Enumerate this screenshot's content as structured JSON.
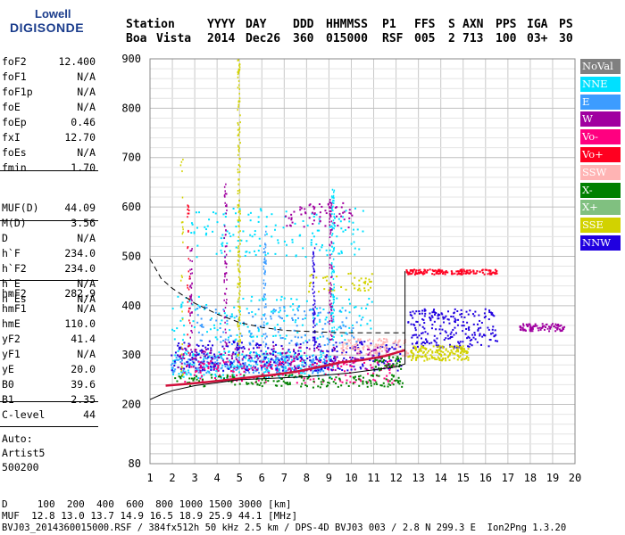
{
  "logo": {
    "line1": "Lowell",
    "line2": "DIGISONDE"
  },
  "header": {
    "row1": [
      "Station",
      "YYYY",
      "DAY",
      "DDD",
      "HHMMSS",
      "P1",
      "FFS",
      "S",
      "AXN",
      "PPS",
      "IGA",
      "PS"
    ],
    "row2": [
      "Boa",
      "Vista",
      "2014",
      "Dec26",
      "360",
      "015000",
      "RSF",
      "005",
      "2",
      "713",
      "100",
      "03+",
      "30"
    ]
  },
  "params": {
    "group1": [
      {
        "name": "foF2",
        "value": "12.400"
      },
      {
        "name": "foF1",
        "value": "N/A"
      },
      {
        "name": "foF1p",
        "value": "N/A"
      },
      {
        "name": "foE",
        "value": "N/A"
      },
      {
        "name": "foEp",
        "value": "0.46"
      },
      {
        "name": "fxI",
        "value": "12.70"
      },
      {
        "name": "foEs",
        "value": "N/A"
      },
      {
        "name": "fmin",
        "value": "1.70"
      }
    ],
    "group2": [
      {
        "name": "MUF(D)",
        "value": "44.09"
      },
      {
        "name": "M(D)",
        "value": "3.56"
      },
      {
        "name": "D",
        "value": "N/A"
      }
    ],
    "group3": [
      {
        "name": "h`F",
        "value": "234.0"
      },
      {
        "name": "h`F2",
        "value": "234.0"
      },
      {
        "name": "h`E",
        "value": "N/A"
      },
      {
        "name": "h`Es",
        "value": "N/A"
      }
    ],
    "group4": [
      {
        "name": "hmF2",
        "value": "282.9"
      },
      {
        "name": "hmF1",
        "value": "N/A"
      },
      {
        "name": "hmE",
        "value": "110.0"
      },
      {
        "name": "yF2",
        "value": "41.4"
      },
      {
        "name": "yF1",
        "value": "N/A"
      },
      {
        "name": "yE",
        "value": "20.0"
      },
      {
        "name": "B0",
        "value": "39.6"
      },
      {
        "name": "B1",
        "value": "2.35"
      }
    ],
    "group5": [
      {
        "name": "C-level",
        "value": "44"
      }
    ],
    "auto": [
      "Auto:",
      "Artist5",
      "500200"
    ]
  },
  "legend": [
    {
      "label": "NoVal",
      "color": "#808080"
    },
    {
      "label": "NNE",
      "color": "#00e0ff"
    },
    {
      "label": "E",
      "color": "#3c9cff"
    },
    {
      "label": "W",
      "color": "#a000a0"
    },
    {
      "label": "Vo-",
      "color": "#ff0080"
    },
    {
      "label": "Vo+",
      "color": "#ff0020"
    },
    {
      "label": "SSW",
      "color": "#ffb4b4"
    },
    {
      "label": "X-",
      "color": "#008000"
    },
    {
      "label": "X+",
      "color": "#80c080"
    },
    {
      "label": "SSE",
      "color": "#d2d200"
    },
    {
      "label": "NNW",
      "color": "#2000e0"
    }
  ],
  "footer": {
    "line1": "D     100  200  400  600  800 1000 1500 3000 [km]",
    "line2": "MUF  12.8 13.0 13.7 14.9 16.5 18.9 25.9 44.1 [MHz]",
    "line3": "BVJ03_2014360015000.RSF / 384fx512h 50 kHz 2.5 km / DPS-4D BVJ03 003 / 2.8 N 299.3 E  Ion2Png 1.3.20"
  },
  "chart_data": {
    "type": "scatter",
    "xlim": [
      1,
      20
    ],
    "ylim": [
      80,
      900
    ],
    "xticks": [
      1,
      2,
      3,
      4,
      5,
      6,
      7,
      8,
      9,
      10,
      11,
      12,
      13,
      14,
      15,
      16,
      17,
      18,
      19,
      20
    ],
    "yticks": [
      80,
      200,
      300,
      400,
      500,
      600,
      700,
      800,
      900
    ],
    "grid": true,
    "legend_position": "right",
    "profile_solid": [
      [
        1.0,
        210
      ],
      [
        1.5,
        220
      ],
      [
        2.0,
        228
      ],
      [
        3.0,
        238
      ],
      [
        4.0,
        244
      ],
      [
        5.0,
        250
      ],
      [
        6.0,
        252
      ],
      [
        7.0,
        254
      ],
      [
        8.0,
        256
      ],
      [
        9.0,
        260
      ],
      [
        10.0,
        264
      ],
      [
        11.0,
        270
      ],
      [
        12.0,
        276
      ],
      [
        12.4,
        282
      ],
      [
        12.4,
        470
      ]
    ],
    "profile_dashed": [
      [
        1.0,
        495
      ],
      [
        1.5,
        455
      ],
      [
        2.0,
        435
      ],
      [
        3.0,
        405
      ],
      [
        4.0,
        383
      ],
      [
        5.0,
        366
      ],
      [
        6.0,
        356
      ],
      [
        7.0,
        350
      ],
      [
        8.0,
        348
      ],
      [
        9.0,
        346
      ],
      [
        10.0,
        345
      ],
      [
        12.4,
        345
      ]
    ],
    "trace": [
      [
        1.7,
        238
      ],
      [
        2.5,
        241
      ],
      [
        3.5,
        245
      ],
      [
        4.5,
        250
      ],
      [
        5.5,
        255
      ],
      [
        6.5,
        260
      ],
      [
        7.5,
        266
      ],
      [
        8.5,
        275
      ],
      [
        9.5,
        285
      ],
      [
        10.5,
        290
      ],
      [
        11.5,
        298
      ],
      [
        12.4,
        310
      ]
    ],
    "clusters": [
      {
        "series": "NNE",
        "x": [
          1.9,
          9.2
        ],
        "y": [
          255,
          310
        ],
        "n": 260
      },
      {
        "series": "E",
        "x": [
          1.9,
          9.0
        ],
        "y": [
          265,
          300
        ],
        "n": 240
      },
      {
        "series": "NNW",
        "x": [
          1.9,
          12.2
        ],
        "y": [
          270,
          330
        ],
        "n": 330
      },
      {
        "series": "W",
        "x": [
          2.2,
          11.8
        ],
        "y": [
          270,
          320
        ],
        "n": 180
      },
      {
        "series": "Vo-",
        "x": [
          2.5,
          12.0
        ],
        "y": [
          245,
          290
        ],
        "n": 160
      },
      {
        "series": "X-",
        "x": [
          2.0,
          12.3
        ],
        "y": [
          236,
          262
        ],
        "n": 170
      },
      {
        "series": "SSW",
        "x": [
          9.5,
          12.5
        ],
        "y": [
          300,
          335
        ],
        "n": 110
      },
      {
        "series": "NNW",
        "x": [
          12.5,
          16.5
        ],
        "y": [
          315,
          395
        ],
        "n": 230
      },
      {
        "series": "SSE",
        "x": [
          12.5,
          15.2
        ],
        "y": [
          290,
          320
        ],
        "n": 160
      },
      {
        "series": "Vo+",
        "x": [
          12.4,
          16.5
        ],
        "y": [
          465,
          475
        ],
        "n": 150
      },
      {
        "series": "W",
        "x": [
          17.5,
          19.5
        ],
        "y": [
          350,
          365
        ],
        "n": 90
      },
      {
        "series": "NNE",
        "x": [
          2.8,
          10.5
        ],
        "y": [
          500,
          600
        ],
        "n": 150
      },
      {
        "series": "W",
        "x": [
          7.0,
          10.0
        ],
        "y": [
          560,
          610
        ],
        "n": 60
      },
      {
        "series": "SSE",
        "x": [
          8.0,
          11.0
        ],
        "y": [
          430,
          470
        ],
        "n": 45
      },
      {
        "series": "NNE",
        "x": [
          1.9,
          11.0
        ],
        "y": [
          330,
          420
        ],
        "n": 160
      },
      {
        "series": "E",
        "x": [
          3.0,
          10.5
        ],
        "y": [
          320,
          400
        ],
        "n": 130
      },
      {
        "series": "X-",
        "x": [
          11.0,
          12.2
        ],
        "y": [
          270,
          300
        ],
        "n": 40
      }
    ],
    "columns": [
      {
        "series": "SSE",
        "x": 4.95,
        "y": [
          300,
          900
        ],
        "n": 150
      },
      {
        "series": "W",
        "x": 4.35,
        "y": [
          300,
          650
        ],
        "n": 60
      },
      {
        "series": "W",
        "x": 2.8,
        "y": [
          300,
          520
        ],
        "n": 40
      },
      {
        "series": "NNE",
        "x": 9.15,
        "y": [
          330,
          640
        ],
        "n": 90
      },
      {
        "series": "W",
        "x": 9.05,
        "y": [
          330,
          620
        ],
        "n": 70
      },
      {
        "series": "SSE",
        "x": 2.4,
        "y": [
          250,
          700
        ],
        "n": 25
      },
      {
        "series": "Vo+",
        "x": 2.7,
        "y": [
          300,
          610
        ],
        "n": 30
      },
      {
        "series": "NNW",
        "x": 8.3,
        "y": [
          320,
          520
        ],
        "n": 60
      },
      {
        "series": "E",
        "x": 6.1,
        "y": [
          300,
          560
        ],
        "n": 50
      }
    ]
  }
}
